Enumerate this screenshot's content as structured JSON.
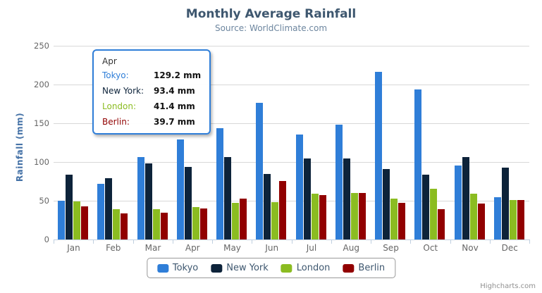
{
  "chart": {
    "title": "Monthly Average Rainfall",
    "subtitle": "Source: WorldClimate.com",
    "y_axis_title": "Rainfall (mm)"
  },
  "chart_data": {
    "type": "bar",
    "title": "Monthly Average Rainfall",
    "subtitle": "Source: WorldClimate.com",
    "xlabel": "",
    "ylabel": "Rainfall (mm)",
    "ylim": [
      0,
      250
    ],
    "y_ticks": [
      0,
      50,
      100,
      150,
      200,
      250
    ],
    "grid": true,
    "legend_position": "bottom-center",
    "categories": [
      "Jan",
      "Feb",
      "Mar",
      "Apr",
      "May",
      "Jun",
      "Jul",
      "Aug",
      "Sep",
      "Oct",
      "Nov",
      "Dec"
    ],
    "series": [
      {
        "name": "Tokyo",
        "color": "#2f7ed8",
        "values": [
          49.9,
          71.5,
          106.4,
          129.2,
          144.0,
          176.0,
          135.6,
          148.5,
          216.4,
          194.1,
          95.6,
          54.4
        ]
      },
      {
        "name": "New York",
        "color": "#0d233a",
        "values": [
          83.6,
          78.8,
          98.5,
          93.4,
          106.0,
          84.5,
          105.0,
          104.3,
          91.2,
          83.5,
          106.6,
          92.3
        ]
      },
      {
        "name": "London",
        "color": "#8bbc21",
        "values": [
          48.9,
          38.8,
          39.3,
          41.4,
          47.0,
          48.3,
          59.0,
          59.6,
          52.4,
          65.2,
          59.3,
          51.2
        ]
      },
      {
        "name": "Berlin",
        "color": "#910000",
        "values": [
          42.4,
          33.2,
          34.5,
          39.7,
          52.6,
          75.5,
          57.4,
          60.4,
          47.6,
          39.1,
          46.8,
          51.1
        ]
      }
    ]
  },
  "tooltip": {
    "header": "Apr",
    "border_color": "#2f7ed8",
    "rows": [
      {
        "label": "Tokyo:",
        "color": "#2f7ed8",
        "value": "129.2 mm"
      },
      {
        "label": "New York:",
        "color": "#0d233a",
        "value": "93.4 mm"
      },
      {
        "label": "London:",
        "color": "#8bbc21",
        "value": "41.4 mm"
      },
      {
        "label": "Berlin:",
        "color": "#910000",
        "value": "39.7 mm"
      }
    ]
  },
  "legend": {
    "items": [
      {
        "label": "Tokyo",
        "color": "#2f7ed8"
      },
      {
        "label": "New York",
        "color": "#0d233a"
      },
      {
        "label": "London",
        "color": "#8bbc21"
      },
      {
        "label": "Berlin",
        "color": "#910000"
      }
    ]
  },
  "export_menu": {
    "icon": "hamburger-icon"
  },
  "credits": "Highcharts.com",
  "colors": {
    "grid": "#d8d8d8",
    "axis_line": "#c0d0e0",
    "title": "#3e576f",
    "subtitle": "#6d869f",
    "axis_label": "#666666",
    "y_axis_title": "#4572a7",
    "legend_text": "#3e576f",
    "credits": "#909090"
  }
}
